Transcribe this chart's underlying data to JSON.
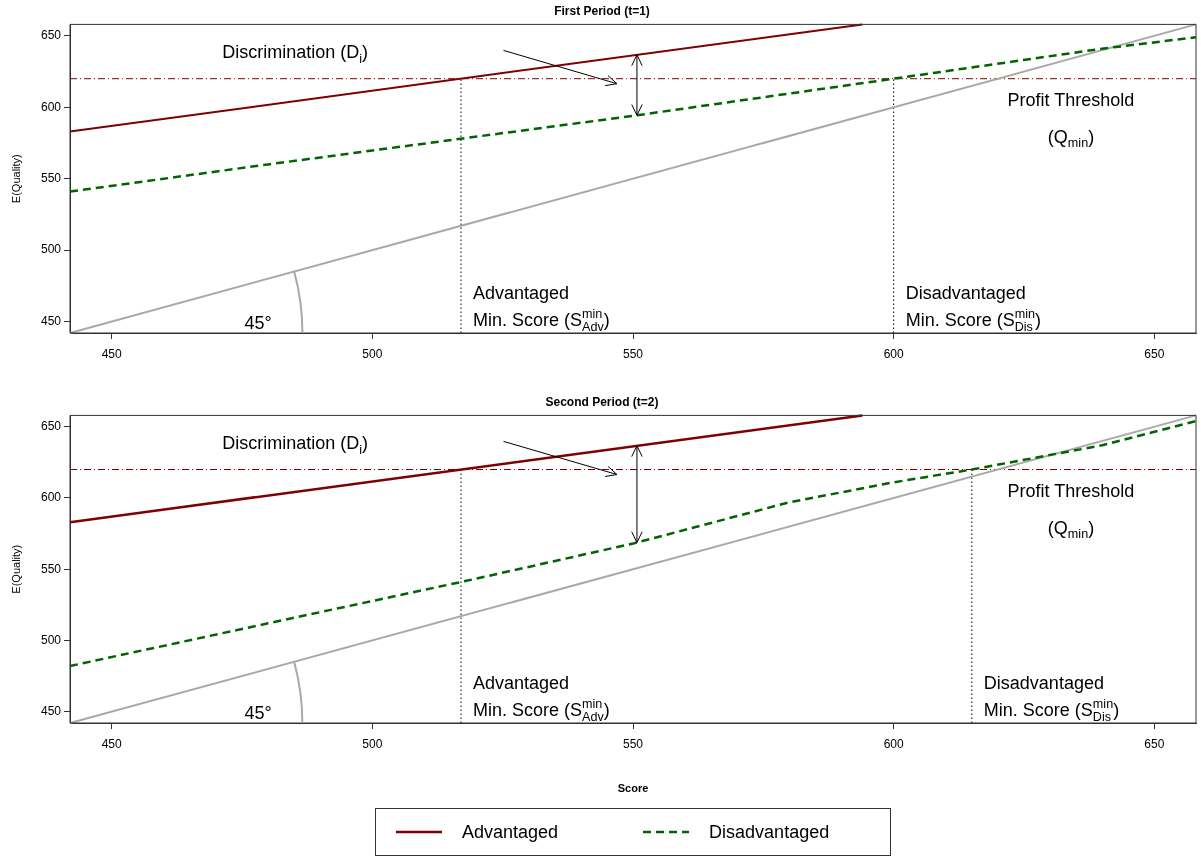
{
  "chart_data": [
    {
      "type": "line",
      "title": "First Period (t=1)",
      "ylabel": "E(Quality)",
      "xlim": [
        442,
        658
      ],
      "ylim": [
        442,
        658
      ],
      "xticks": [
        450,
        500,
        550,
        600,
        650
      ],
      "yticks": [
        450,
        500,
        550,
        600,
        650
      ],
      "grid": false,
      "legend": false,
      "series": [
        {
          "color": "#7f0000",
          "x": [
            442,
            594
          ],
          "values": [
            583,
            658
          ]
        },
        {
          "color": "#006400",
          "line_style": "dashed",
          "x": [
            442,
            480,
            517,
            550,
            600,
            640,
            658
          ],
          "values": [
            541,
            560,
            578,
            594,
            620,
            641,
            649
          ]
        },
        {
          "color": "#a9a9a9",
          "x": [
            442,
            658
          ],
          "values": [
            442,
            658
          ]
        }
      ],
      "ref_lines": [
        {
          "axis": "y",
          "value": 620,
          "label": "Profit Threshold\n(Q$_{min}$)",
          "color": "#7f0000",
          "line_style": "dashed"
        },
        {
          "axis": "x",
          "value": 517,
          "label": "Advantaged\nMin. Score (S$^{min}$$_{Adv}$)",
          "color": "#000000",
          "line_style": "dotted"
        },
        {
          "axis": "x",
          "value": 600,
          "label": "Disadvantaged\nMin. Score (S$^{min}$$_{Dis}$)",
          "color": "#000000",
          "line_style": "dotted"
        }
      ],
      "annotations": [
        "Discrimination (D$_{i}$)",
        {
          "text": "45°",
          "x": 485,
          "y": 485
        }
      ]
    },
    {
      "type": "line",
      "title": "Second Period (t=2)",
      "xlabel": "Score",
      "ylabel": "E(Quality)",
      "xlim": [
        442,
        658
      ],
      "ylim": [
        442,
        658
      ],
      "xticks": [
        450,
        500,
        550,
        600,
        650
      ],
      "yticks": [
        450,
        500,
        550,
        600,
        650
      ],
      "grid": false,
      "legend": "bottom",
      "series": [
        {
          "name": "Advantaged",
          "color": "#7f0000",
          "x": [
            442,
            594
          ],
          "values": [
            583,
            658
          ]
        },
        {
          "name": "Disadvantaged",
          "color": "#006400",
          "line_style": "dashed",
          "x": [
            442,
            480,
            517,
            550,
            580,
            600,
            615,
            640,
            658
          ],
          "values": [
            482,
            512,
            541,
            568,
            597,
            611,
            620,
            637,
            654
          ]
        },
        {
          "color": "#a9a9a9",
          "x": [
            442,
            658
          ],
          "values": [
            442,
            658
          ]
        }
      ],
      "ref_lines": [
        {
          "axis": "y",
          "value": 620,
          "label": "Profit Threshold\n(Q$_{min}$)",
          "color": "#7f0000",
          "line_style": "dashed"
        },
        {
          "axis": "x",
          "value": 517,
          "label": "Advantaged\nMin. Score (S$^{min}$$_{Adv}$)",
          "color": "#000000",
          "line_style": "dotted"
        },
        {
          "axis": "x",
          "value": 615,
          "label": "Disadvantaged\nMin. Score (S$^{min}$$_{Dis}$)",
          "color": "#000000",
          "line_style": "dotted"
        }
      ],
      "annotations": [
        "Discrimination (D$_{i}$)",
        {
          "text": "45°",
          "x": 485,
          "y": 485
        }
      ]
    }
  ]
}
